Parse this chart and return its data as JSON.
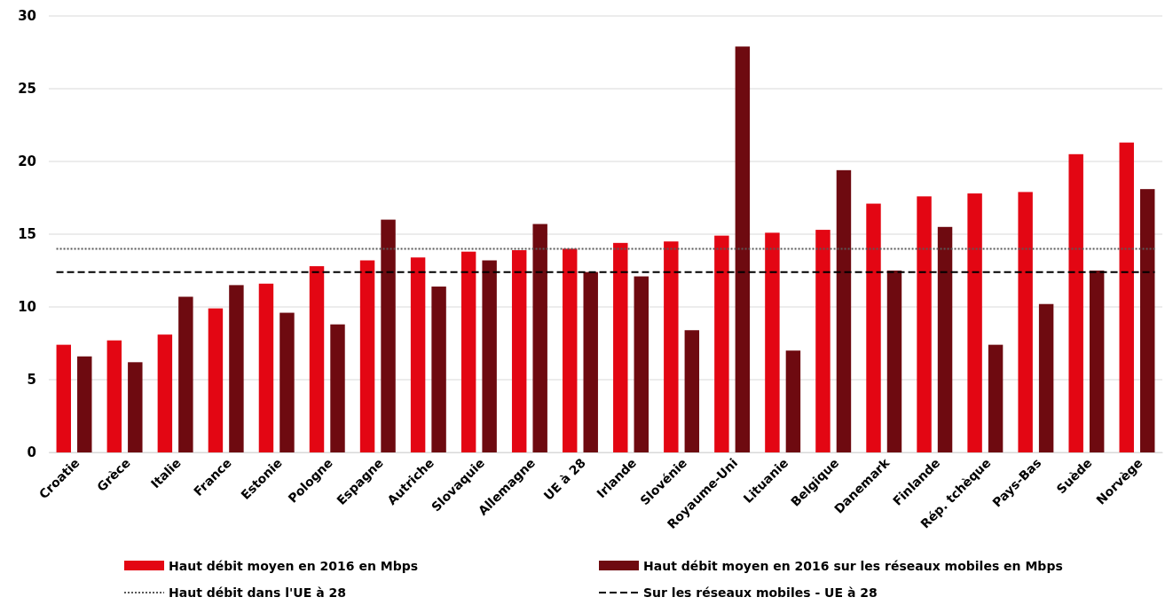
{
  "chart_data": {
    "type": "bar",
    "categories": [
      "Croatie",
      "Grèce",
      "Italie",
      "France",
      "Estonie",
      "Pologne",
      "Espagne",
      "Autriche",
      "Slovaquie",
      "Allemagne",
      "UE à 28",
      "Irlande",
      "Slovénie",
      "Royaume-Uni",
      "Lituanie",
      "Belgique",
      "Danemark",
      "Finlande",
      "Rép. tchèque",
      "Pays-Bas",
      "Suède",
      "Norvège"
    ],
    "series": [
      {
        "name": "Haut débit moyen en 2016 en Mbps",
        "color": "#e30613",
        "values": [
          7.4,
          7.7,
          8.1,
          9.9,
          11.6,
          12.8,
          13.2,
          13.4,
          13.8,
          13.9,
          14.0,
          14.4,
          14.5,
          14.9,
          15.1,
          15.3,
          17.1,
          17.6,
          17.8,
          17.9,
          20.5,
          21.3
        ]
      },
      {
        "name": "Haut débit moyen en 2016 sur les réseaux mobiles en Mbps",
        "color": "#6e0a10",
        "values": [
          6.6,
          6.2,
          10.7,
          11.5,
          9.6,
          8.8,
          16.0,
          11.4,
          13.2,
          15.7,
          12.4,
          12.1,
          8.4,
          27.9,
          7.0,
          19.4,
          12.5,
          15.5,
          7.4,
          10.2,
          12.5,
          18.1
        ]
      }
    ],
    "ref_lines": [
      {
        "axis": "y",
        "value": 14.0,
        "label": "Haut débit dans l'UE à 28",
        "color": "#595959",
        "line_style": "dotted"
      },
      {
        "axis": "y",
        "value": 12.4,
        "label": "Sur les réseaux mobiles - UE à 28",
        "color": "#000000",
        "line_style": "dashed"
      }
    ],
    "ylim": [
      0,
      30
    ],
    "yticks": [
      0,
      5,
      10,
      15,
      20,
      25,
      30
    ],
    "grid": "y",
    "legend": "bottom"
  }
}
